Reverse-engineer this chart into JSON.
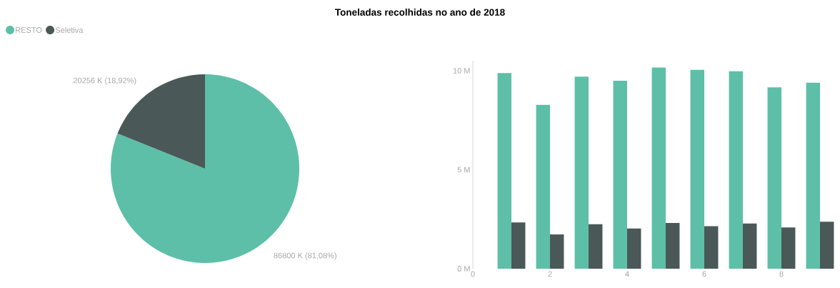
{
  "chart_data": [
    {
      "type": "pie",
      "title": "Toneladas recolhidas no ano de 2018",
      "categories": [
        "RESTO",
        "Seletiva"
      ],
      "values": [
        86800,
        20256
      ],
      "colors": [
        "#5dbfa8",
        "#4a5858"
      ],
      "value_labels": [
        "86800 K (81,08%)",
        "20256 K (18,92%)"
      ],
      "legend": "top left"
    },
    {
      "type": "bar",
      "x": [
        1,
        2,
        3,
        4,
        5,
        6,
        7,
        8,
        9
      ],
      "series": [
        {
          "color": "#5dbfa8",
          "values": [
            9.88,
            8.27,
            9.7,
            9.49,
            10.16,
            10.04,
            9.97,
            9.16,
            9.39
          ]
        },
        {
          "color": "#4a5858",
          "values": [
            2.34,
            1.73,
            2.25,
            2.03,
            2.31,
            2.15,
            2.28,
            2.08,
            2.37
          ]
        }
      ],
      "xlim": [
        0,
        9.4
      ],
      "ylim": [
        0,
        10.5
      ],
      "xticks": [
        0,
        2,
        4,
        6,
        8
      ],
      "yticks": [
        {
          "value": 0,
          "label": "0 M"
        },
        {
          "value": 5,
          "label": "5 M"
        },
        {
          "value": 10,
          "label": "10 M"
        }
      ]
    }
  ]
}
